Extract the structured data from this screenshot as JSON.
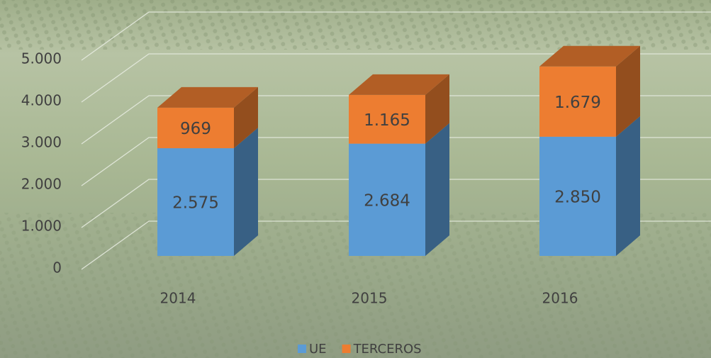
{
  "chart_data": {
    "type": "bar3d_stacked",
    "categories": [
      "2014",
      "2015",
      "2016"
    ],
    "series": [
      {
        "name": "UE",
        "color": "#5b9bd5",
        "values": [
          2575,
          2684,
          2850
        ],
        "value_labels": [
          "2.575",
          "2.684",
          "2.850"
        ]
      },
      {
        "name": "TERCEROS",
        "color": "#ed7d31",
        "values": [
          969,
          1165,
          1679
        ],
        "value_labels": [
          "969",
          "1.165",
          "1.679"
        ]
      }
    ],
    "ylim": [
      0,
      5000
    ],
    "yticks": [
      0,
      {
        "value": 1000,
        "label": "1.000"
      },
      {
        "value": 2000,
        "label": "2.000"
      },
      {
        "value": 3000,
        "label": "3.000"
      },
      {
        "value": 4000,
        "label": "4.000"
      },
      {
        "value": 5000,
        "label": "5.000"
      }
    ],
    "grid": true,
    "legend": "bottom"
  }
}
